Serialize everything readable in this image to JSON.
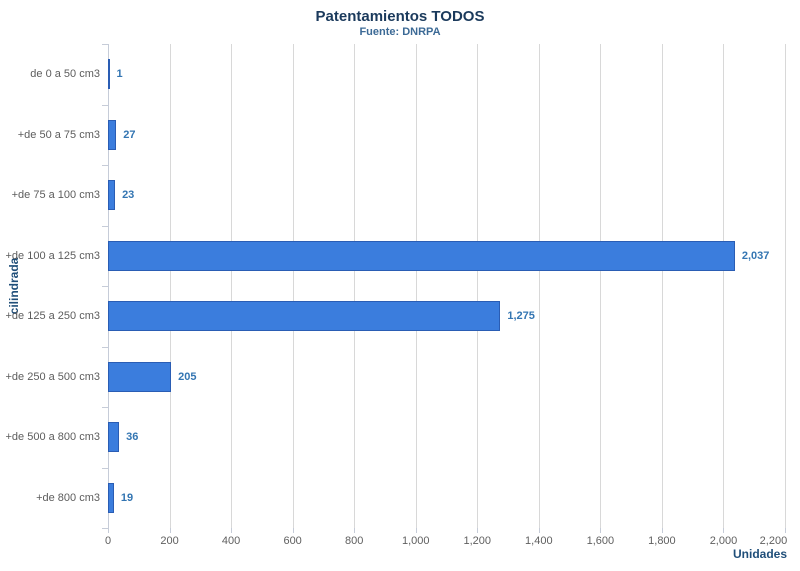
{
  "chart_data": {
    "type": "bar",
    "orientation": "horizontal",
    "title": "Patentamientos TODOS",
    "subtitle": "Fuente: DNRPA",
    "xlabel": "Unidades",
    "ylabel": "cilindrada",
    "categories": [
      "de 0 a 50 cm3",
      "+de 50 a 75 cm3",
      "+de 75 a 100 cm3",
      "+de 100 a 125 cm3",
      "+de 125 a 250 cm3",
      "+de 250 a 500 cm3",
      "+de 500 a 800 cm3",
      "+de 800 cm3"
    ],
    "values": [
      1,
      27,
      23,
      2037,
      1275,
      205,
      36,
      19
    ],
    "value_labels": [
      "1",
      "27",
      "23",
      "2,037",
      "1,275",
      "205",
      "36",
      "19"
    ],
    "xlim": [
      0,
      2200
    ],
    "tick_interval": 200,
    "x_tick_labels": [
      "0",
      "200",
      "400",
      "600",
      "800",
      "1,000",
      "1,200",
      "1,400",
      "1,600",
      "1,800",
      "2,000",
      "2,200"
    ],
    "grid": true,
    "legend": "none",
    "colors": {
      "bar_fill": "#3b7ddd",
      "bar_border": "#2a5db4",
      "data_label": "#3375b2",
      "title": "#1b3a5c",
      "subtitle": "#3c6a96",
      "axis_title": "#1f4e79",
      "gridline": "#d8d8d8"
    }
  }
}
